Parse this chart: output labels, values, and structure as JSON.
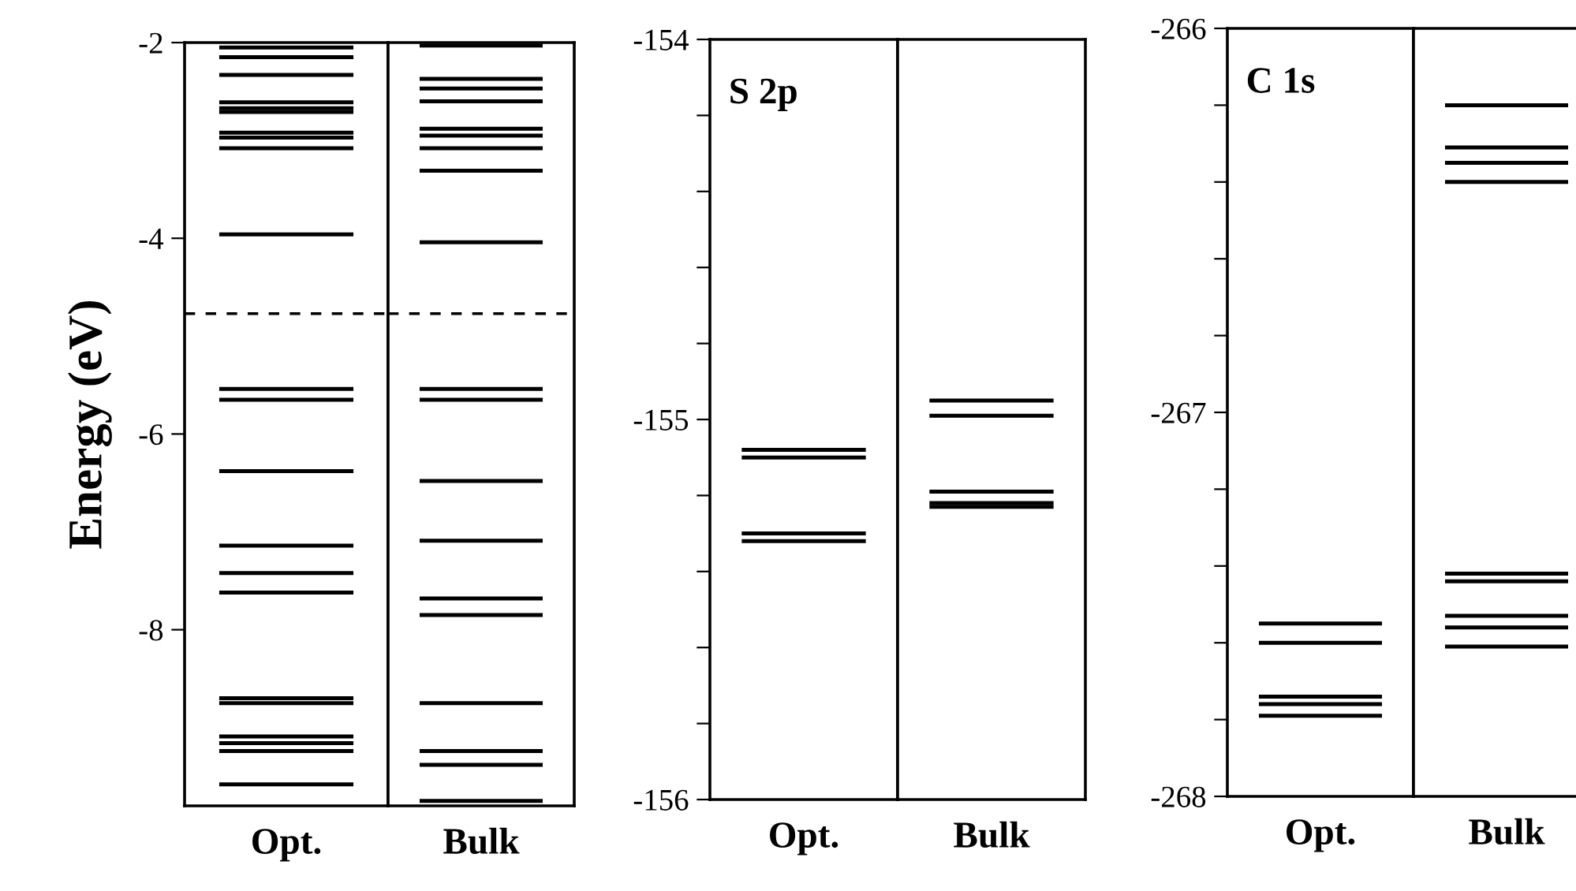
{
  "chart_data": [
    {
      "type": "line",
      "ylabel": "Energy (eV)",
      "categories": [
        "Opt."
      ],
      "ylim": [
        -9.8,
        -2
      ],
      "yticks": [
        -2,
        -4,
        -6,
        -8
      ],
      "ref_lines": [
        {
          "axis": "y",
          "value": -2.05
        },
        {
          "axis": "y",
          "value": -2.15
        },
        {
          "axis": "y",
          "value": -2.33
        },
        {
          "axis": "y",
          "value": -2.61
        },
        {
          "axis": "y",
          "value": -2.67
        },
        {
          "axis": "y",
          "value": -2.71
        },
        {
          "axis": "y",
          "value": -2.92
        },
        {
          "axis": "y",
          "value": -2.97
        },
        {
          "axis": "y",
          "value": -3.08
        },
        {
          "axis": "y",
          "value": -3.96
        },
        {
          "axis": "y",
          "value": -5.54
        },
        {
          "axis": "y",
          "value": -5.65
        },
        {
          "axis": "y",
          "value": -6.38
        },
        {
          "axis": "y",
          "value": -7.14
        },
        {
          "axis": "y",
          "value": -7.42
        },
        {
          "axis": "y",
          "value": -7.62
        },
        {
          "axis": "y",
          "value": -8.7
        },
        {
          "axis": "y",
          "value": -8.75
        },
        {
          "axis": "y",
          "value": -9.09
        },
        {
          "axis": "y",
          "value": -9.16
        },
        {
          "axis": "y",
          "value": -9.24
        },
        {
          "axis": "y",
          "value": -9.58
        },
        {
          "axis": "y",
          "value": -4.77,
          "line_style": "dashed"
        }
      ]
    },
    {
      "type": "line",
      "categories": [
        "Bulk"
      ],
      "ylim": [
        -9.8,
        -2
      ],
      "tick_labels": "x",
      "ref_lines": [
        {
          "axis": "y",
          "value": -2.03
        },
        {
          "axis": "y",
          "value": -2.37
        },
        {
          "axis": "y",
          "value": -2.47
        },
        {
          "axis": "y",
          "value": -2.6
        },
        {
          "axis": "y",
          "value": -2.88
        },
        {
          "axis": "y",
          "value": -2.95
        },
        {
          "axis": "y",
          "value": -3.08
        },
        {
          "axis": "y",
          "value": -3.31
        },
        {
          "axis": "y",
          "value": -4.04
        },
        {
          "axis": "y",
          "value": -5.54
        },
        {
          "axis": "y",
          "value": -5.65
        },
        {
          "axis": "y",
          "value": -6.48
        },
        {
          "axis": "y",
          "value": -7.09
        },
        {
          "axis": "y",
          "value": -7.68
        },
        {
          "axis": "y",
          "value": -7.85
        },
        {
          "axis": "y",
          "value": -8.75
        },
        {
          "axis": "y",
          "value": -9.24
        },
        {
          "axis": "y",
          "value": -9.38
        },
        {
          "axis": "y",
          "value": -9.75
        },
        {
          "axis": "y",
          "value": -4.77,
          "line_style": "dashed"
        }
      ]
    },
    {
      "type": "line",
      "annotations": [
        "S 2p"
      ],
      "categories": [
        "Opt."
      ],
      "ylim": [
        -156,
        -154
      ],
      "yticks": [
        -154,
        {
          "value": -154.2,
          "label": null
        },
        {
          "value": -154.4,
          "label": null
        },
        {
          "value": -154.6,
          "label": null
        },
        {
          "value": -154.8,
          "label": null
        },
        -155,
        {
          "value": -155.2,
          "label": null
        },
        {
          "value": -155.4,
          "label": null
        },
        {
          "value": -155.6,
          "label": null
        },
        {
          "value": -155.8,
          "label": null
        },
        -156
      ],
      "ref_lines": [
        {
          "axis": "y",
          "value": -155.08
        },
        {
          "axis": "y",
          "value": -155.1
        },
        {
          "axis": "y",
          "value": -155.3
        },
        {
          "axis": "y",
          "value": -155.32
        }
      ]
    },
    {
      "type": "line",
      "categories": [
        "Bulk"
      ],
      "ylim": [
        -156,
        -154
      ],
      "tick_labels": "x",
      "ref_lines": [
        {
          "axis": "y",
          "value": -154.95
        },
        {
          "axis": "y",
          "value": -154.99
        },
        {
          "axis": "y",
          "value": -155.19
        },
        {
          "axis": "y",
          "value": -155.22
        },
        {
          "axis": "y",
          "value": -155.23
        }
      ]
    },
    {
      "type": "line",
      "annotations": [
        "C 1s"
      ],
      "categories": [
        "Opt."
      ],
      "ylim": [
        -268,
        -266
      ],
      "yticks": [
        -266,
        {
          "value": -266.2,
          "label": null
        },
        {
          "value": -266.4,
          "label": null
        },
        {
          "value": -266.6,
          "label": null
        },
        {
          "value": -266.8,
          "label": null
        },
        -267,
        {
          "value": -267.2,
          "label": null
        },
        {
          "value": -267.4,
          "label": null
        },
        {
          "value": -267.6,
          "label": null
        },
        {
          "value": -267.8,
          "label": null
        },
        -268
      ],
      "ref_lines": [
        {
          "axis": "y",
          "value": -267.55
        },
        {
          "axis": "y",
          "value": -267.6
        },
        {
          "axis": "y",
          "value": -267.74
        },
        {
          "axis": "y",
          "value": -267.76
        },
        {
          "axis": "y",
          "value": -267.79
        }
      ]
    },
    {
      "type": "line",
      "categories": [
        "Bulk"
      ],
      "ylim": [
        -268,
        -266
      ],
      "tick_labels": "x",
      "ref_lines": [
        {
          "axis": "y",
          "value": -266.2
        },
        {
          "axis": "y",
          "value": -266.31
        },
        {
          "axis": "y",
          "value": -266.35
        },
        {
          "axis": "y",
          "value": -266.4
        },
        {
          "axis": "y",
          "value": -267.42
        },
        {
          "axis": "y",
          "value": -267.44
        },
        {
          "axis": "y",
          "value": -267.53
        },
        {
          "axis": "y",
          "value": -267.56
        },
        {
          "axis": "y",
          "value": -267.61
        }
      ]
    }
  ]
}
